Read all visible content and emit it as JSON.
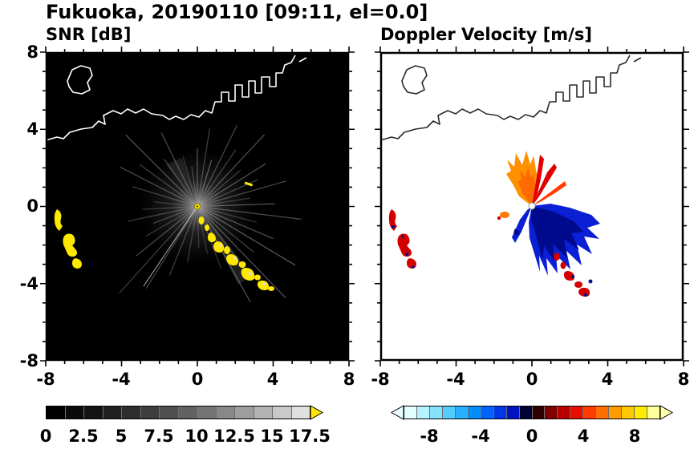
{
  "title": "Fukuoka, 20190110 [09:11, el=0.0]",
  "panels": {
    "snr": {
      "title": "SNR [dB]",
      "xticks": [
        "-8",
        "-4",
        "0",
        "4",
        "8"
      ],
      "yticks": [
        "8",
        "4",
        "0",
        "-4",
        "-8"
      ]
    },
    "doppler": {
      "title": "Doppler Velocity [m/s]",
      "xticks": [
        "-8",
        "-4",
        "0",
        "4",
        "8"
      ]
    }
  },
  "colorbars": {
    "snr": {
      "ticks": [
        "0",
        "2.5",
        "5",
        "7.5",
        "10",
        "12.5",
        "15",
        "17.5"
      ],
      "segments": [
        "#000000",
        "#0a0a0a",
        "#141414",
        "#202020",
        "#2e2e2e",
        "#3e3e3e",
        "#4f4f4f",
        "#616161",
        "#747474",
        "#888888",
        "#9d9d9d",
        "#b3b3b3",
        "#c9c9c9",
        "#e0e0e0"
      ],
      "over_color": "#ffe800"
    },
    "doppler": {
      "ticks": [
        "-8",
        "-4",
        "0",
        "4",
        "8"
      ],
      "segments": [
        "#e2feff",
        "#b6f2ff",
        "#86e2ff",
        "#55ccff",
        "#26b0ff",
        "#008ffe",
        "#0062ff",
        "#0036ea",
        "#0013c0",
        "#000233",
        "#2e0000",
        "#800000",
        "#b80000",
        "#e80e00",
        "#ff3c00",
        "#ff6e00",
        "#ff9c00",
        "#ffc800",
        "#ffec00",
        "#ffff9c"
      ],
      "under_color": "#eafeff",
      "over_color": "#ffffae"
    }
  },
  "chart_data": [
    {
      "type": "heatmap",
      "panel": "left",
      "title": "SNR [dB]",
      "xlim": [
        -8,
        8
      ],
      "ylim": [
        -8,
        8
      ],
      "xticks": [
        -8,
        -4,
        0,
        4,
        8
      ],
      "yticks": [
        -8,
        -4,
        0,
        4,
        8
      ],
      "grid": false,
      "background_value_color": "#000000",
      "colorbar": {
        "orientation": "horizontal",
        "range": [
          0,
          17.5
        ],
        "tick_values": [
          0,
          2.5,
          5,
          7.5,
          10,
          12.5,
          15,
          17.5
        ],
        "colormap": "grayscale black to light gray with yellow overflow arrow for >17.5 dB"
      },
      "features": [
        {
          "label": "radar site",
          "x": 0,
          "y": 0,
          "value": "bright point at origin; gray radial interference spokes extending 2-6 km in all azimuths"
        },
        {
          "label": "coastline",
          "value": "white coast outline with harbor breakwaters across the top of the domain, y = 3.5 to 6.5; small island outline near (-6.6, 5.6)"
        },
        {
          "label": "high SNR echo chain",
          "value": "yellow (>17.5 dB) echoes in a broken line from (0.2, -0.8) to (3.9, -4.3)"
        },
        {
          "label": "high SNR echoes west",
          "value": "yellow crescent patches at x = -7.5 to -6.2, y = -0.3 to -3.3"
        }
      ]
    },
    {
      "type": "heatmap",
      "panel": "right",
      "title": "Doppler Velocity [m/s]",
      "xlim": [
        -8,
        8
      ],
      "ylim": [
        -8,
        8
      ],
      "xticks": [
        -8,
        -4,
        0,
        4,
        8
      ],
      "yticks": [
        -8,
        -4,
        0,
        4,
        8
      ],
      "grid": false,
      "background_value_color": "#ffffff",
      "colorbar": {
        "orientation": "horizontal",
        "range": [
          -10,
          10
        ],
        "tick_values": [
          -8,
          -4,
          0,
          4,
          8
        ],
        "colormap": "diverging: pale cyan - blue - navy/black at 0 - dark red - orange - yellow, overflow arrows at both ends"
      },
      "features": [
        {
          "label": "positive velocity fan",
          "value": "orange/red echoes (about +2 to +8 m/s) fanning north and NNE of the radar out to ~2.5 km"
        },
        {
          "label": "negative velocity fan",
          "value": "blue/navy echoes (about -2 to -9 m/s) fanning ESE to south of the radar out to ~3.5 km"
        },
        {
          "label": "ship echoes west",
          "value": "red patches with navy speckles at x = -7.5 to -6.2, y = -0.3 to -3.3"
        },
        {
          "label": "ship echo chain",
          "value": "red/navy echoes from (1.3, -2.6) to (2.9, -4.6)"
        },
        {
          "label": "coastline",
          "value": "black coast outline, same geometry as left panel"
        }
      ]
    }
  ]
}
